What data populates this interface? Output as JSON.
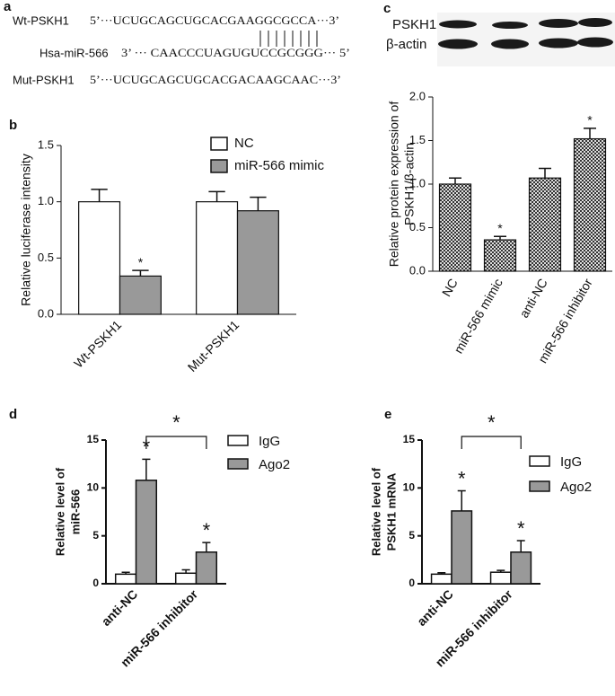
{
  "panel_a": {
    "label": "a",
    "rows": [
      {
        "name": "Wt-PSKH1",
        "sequence": "5’···UCUGCAGCUGCACGAAGGCGCCA···3’"
      },
      {
        "name": "Hsa-miR-566",
        "sequence": "3’ ··· CAACCCUAGUGUCCGCGGG··· 5’"
      },
      {
        "name": "Mut-PSKH1",
        "sequence": "5’···UCUGCAGCUGCACGACAAGCAAC···3’"
      }
    ]
  },
  "blot": {
    "bands": [
      "PSKH1",
      "β-actin"
    ]
  },
  "chart_data": [
    {
      "panel": "b",
      "type": "bar",
      "ylabel": [
        "Relative luciferase intensity"
      ],
      "categories": [
        "Wt-PSKH1",
        "Mut-PSKH1"
      ],
      "series": [
        {
          "name": "NC",
          "color": "#ffffff",
          "values": [
            1.0,
            1.0
          ],
          "errors": [
            0.11,
            0.09
          ],
          "significance": [
            null,
            null
          ]
        },
        {
          "name": "miR-566 mimic",
          "color": "#999999",
          "values": [
            0.34,
            0.92
          ],
          "errors": [
            0.05,
            0.12
          ],
          "significance": [
            "*",
            null
          ]
        }
      ],
      "ylim": [
        0,
        1.5
      ],
      "yticks": [
        {
          "value": 0,
          "label": "0.0"
        },
        0.5,
        {
          "value": 1,
          "label": "1.0"
        },
        1.5
      ],
      "legend": "upper right"
    },
    {
      "panel": "c",
      "type": "bar",
      "ylabel": [
        "Relative protein expression of",
        "PSKH1/β-actin"
      ],
      "categories": [
        "NC",
        "miR-566 mimic",
        "anti-NC",
        "miR-566  inhibitor"
      ],
      "values": [
        1.0,
        0.36,
        1.07,
        1.52
      ],
      "errors": [
        0.07,
        0.04,
        0.11,
        0.12
      ],
      "significance": [
        null,
        "*",
        null,
        "*"
      ],
      "color": "#666666",
      "pattern": "checkerboard",
      "ylim": [
        0,
        2
      ],
      "yticks": [
        {
          "value": 0,
          "label": "0.0"
        },
        0.5,
        {
          "value": 1,
          "label": "1.0"
        },
        1.5,
        {
          "value": 2,
          "label": "2.0"
        }
      ]
    },
    {
      "panel": "d",
      "type": "bar",
      "ylabel": [
        "Relative level of",
        "miR-566"
      ],
      "categories": [
        "anti-NC",
        "miR-566 inhibitor"
      ],
      "series": [
        {
          "name": "IgG",
          "color": "#ffffff",
          "values": [
            1.0,
            1.1
          ],
          "errors": [
            0.2,
            0.35
          ],
          "significance": [
            null,
            null
          ]
        },
        {
          "name": "Ago2",
          "color": "#999999",
          "values": [
            10.8,
            3.3
          ],
          "errors": [
            2.2,
            1.0
          ],
          "significance": [
            "*",
            "*"
          ]
        }
      ],
      "bracket": "*",
      "ylim": [
        0,
        15
      ],
      "yticks": [
        0,
        5,
        10,
        15
      ],
      "legend": "upper right"
    },
    {
      "panel": "e",
      "type": "bar",
      "ylabel": [
        "Relative level of",
        "PSKH1 mRNA"
      ],
      "categories": [
        "anti-NC",
        "miR-566 inhibitor"
      ],
      "series": [
        {
          "name": "IgG",
          "color": "#ffffff",
          "values": [
            1.0,
            1.2
          ],
          "errors": [
            0.15,
            0.2
          ],
          "significance": [
            null,
            null
          ]
        },
        {
          "name": "Ago2",
          "color": "#999999",
          "values": [
            7.6,
            3.3
          ],
          "errors": [
            2.1,
            1.2
          ],
          "significance": [
            "*",
            "*"
          ]
        }
      ],
      "bracket": "*",
      "ylim": [
        0,
        15
      ],
      "yticks": [
        0,
        5,
        10,
        15
      ],
      "legend": "upper right"
    }
  ]
}
